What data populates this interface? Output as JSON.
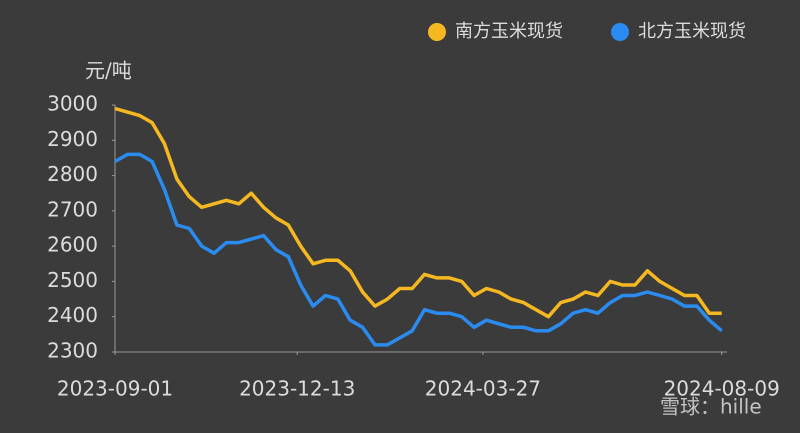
{
  "chart_data": {
    "type": "line",
    "y_unit": "元/吨",
    "watermark": "雪球：hille",
    "x": [
      "2023-09-01",
      "2023-09-08",
      "2023-09-15",
      "2023-09-22",
      "2023-09-29",
      "2023-10-06",
      "2023-10-13",
      "2023-10-20",
      "2023-10-27",
      "2023-11-03",
      "2023-11-10",
      "2023-11-17",
      "2023-11-24",
      "2023-12-01",
      "2023-12-08",
      "2023-12-15",
      "2023-12-22",
      "2023-12-29",
      "2024-01-05",
      "2024-01-12",
      "2024-01-19",
      "2024-01-26",
      "2024-02-02",
      "2024-02-09",
      "2024-02-16",
      "2024-02-23",
      "2024-03-01",
      "2024-03-08",
      "2024-03-15",
      "2024-03-22",
      "2024-03-29",
      "2024-04-05",
      "2024-04-12",
      "2024-04-19",
      "2024-04-26",
      "2024-05-03",
      "2024-05-10",
      "2024-05-17",
      "2024-05-24",
      "2024-05-31",
      "2024-06-07",
      "2024-06-14",
      "2024-06-21",
      "2024-06-28",
      "2024-07-05",
      "2024-07-12",
      "2024-07-19",
      "2024-07-26",
      "2024-08-02",
      "2024-08-09"
    ],
    "series": [
      {
        "name": "南方玉米现货",
        "color": "#f5b820",
        "values": [
          2990,
          2980,
          2970,
          2950,
          2890,
          2790,
          2740,
          2710,
          2720,
          2730,
          2720,
          2750,
          2710,
          2680,
          2660,
          2600,
          2550,
          2560,
          2560,
          2530,
          2470,
          2430,
          2450,
          2480,
          2480,
          2520,
          2510,
          2510,
          2500,
          2460,
          2480,
          2470,
          2450,
          2440,
          2420,
          2400,
          2440,
          2450,
          2470,
          2460,
          2500,
          2490,
          2490,
          2530,
          2500,
          2480,
          2460,
          2460,
          2410,
          2410
        ]
      },
      {
        "name": "北方玉米现货",
        "color": "#2a8cf0",
        "values": [
          2840,
          2860,
          2860,
          2840,
          2760,
          2660,
          2650,
          2600,
          2580,
          2610,
          2610,
          2620,
          2630,
          2590,
          2570,
          2490,
          2430,
          2460,
          2450,
          2390,
          2370,
          2320,
          2320,
          2340,
          2360,
          2420,
          2410,
          2410,
          2400,
          2370,
          2390,
          2380,
          2370,
          2370,
          2360,
          2360,
          2380,
          2410,
          2420,
          2410,
          2440,
          2460,
          2460,
          2470,
          2460,
          2450,
          2430,
          2430,
          2390,
          2360
        ]
      }
    ],
    "xlim": [
      "2023-09-01",
      "2024-08-12"
    ],
    "xticks": [
      "2023-09-01",
      "2023-12-13",
      "2024-03-27",
      "2024-08-09"
    ],
    "ylim": [
      2300,
      3000
    ],
    "yticks": [
      2300,
      2400,
      2500,
      2600,
      2700,
      2800,
      2900,
      3000
    ],
    "legend": "top-right"
  }
}
